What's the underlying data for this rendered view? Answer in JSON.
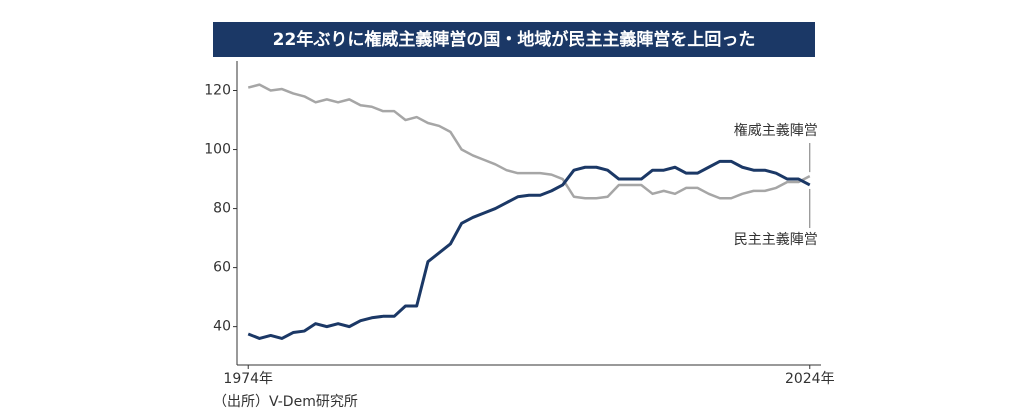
{
  "chart_data": {
    "type": "line",
    "title": "22年ぶりに権威主義陣営の国・地域が民主主義陣営を上回った",
    "source": "（出所）V-Dem研究所",
    "x": [
      1974,
      1975,
      1976,
      1977,
      1978,
      1979,
      1980,
      1981,
      1982,
      1983,
      1984,
      1985,
      1986,
      1987,
      1988,
      1989,
      1990,
      1991,
      1992,
      1993,
      1994,
      1995,
      1996,
      1997,
      1998,
      1999,
      2000,
      2001,
      2002,
      2003,
      2004,
      2005,
      2006,
      2007,
      2008,
      2009,
      2010,
      2011,
      2012,
      2013,
      2014,
      2015,
      2016,
      2017,
      2018,
      2019,
      2020,
      2021,
      2022,
      2023,
      2024
    ],
    "series": [
      {
        "name": "権威主義陣営",
        "color": "#a6a6a6",
        "values": [
          121,
          122,
          120,
          120.5,
          119,
          118,
          116,
          117,
          116,
          117,
          115,
          114.5,
          113,
          113,
          110,
          111,
          109,
          108,
          106,
          100,
          98,
          96.5,
          95,
          93,
          92,
          92,
          92,
          91.5,
          90,
          84,
          83.5,
          83.5,
          84,
          88,
          88,
          88,
          85,
          86,
          85,
          87,
          87,
          85,
          83.5,
          83.5,
          85,
          86,
          86,
          87,
          89,
          89,
          91
        ]
      },
      {
        "name": "民主主義陣営",
        "color": "#1b3866",
        "values": [
          37.5,
          36,
          37,
          36,
          38,
          38.5,
          41,
          40,
          41,
          40,
          42,
          43,
          43.5,
          43.5,
          47,
          47,
          62,
          65,
          68,
          75,
          77,
          78.5,
          80,
          82,
          84,
          84.5,
          84.5,
          86,
          88,
          93,
          94,
          94,
          93,
          90,
          90,
          90,
          93,
          93,
          94,
          92,
          92,
          94,
          96,
          96,
          94,
          93,
          93,
          92,
          90,
          90,
          88
        ]
      }
    ],
    "xlim": [
      1973,
      2025
    ],
    "xticks": [
      {
        "value": 1974,
        "label": "1974年"
      },
      {
        "value": 2024,
        "label": "2024年"
      }
    ],
    "ylim": [
      27,
      130
    ],
    "yticks": [
      40,
      60,
      80,
      100,
      120
    ],
    "grid": false
  }
}
